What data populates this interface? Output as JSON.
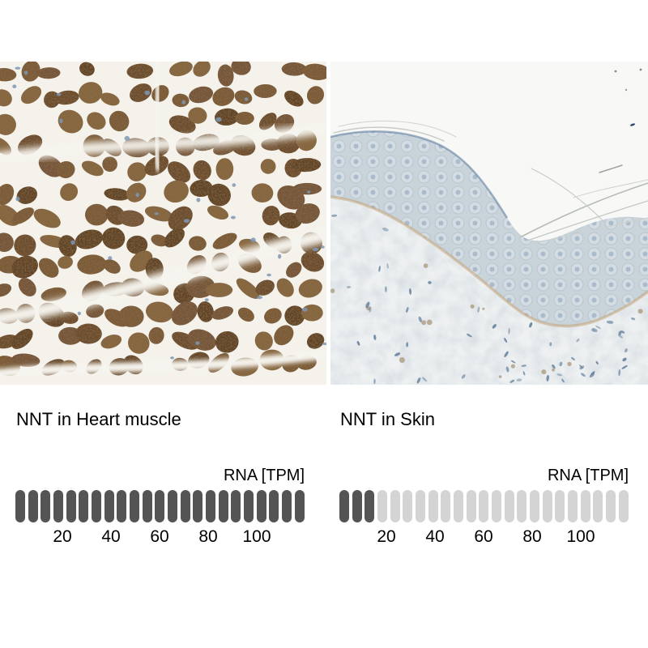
{
  "page": {
    "background": "#ffffff"
  },
  "panels": [
    {
      "title": "NNT in Heart muscle",
      "axis_label": "RNA [TPM]",
      "ticks": [
        "20",
        "40",
        "60",
        "80",
        "100"
      ],
      "bar": {
        "segments_total": 23,
        "segments_filled": 23,
        "filled_color": "#545454",
        "empty_color": "#d4d4d4"
      },
      "micrograph": {
        "description": "IHC micrograph of heart muscle with strong brown cytoplasmic staining of myocyte bundles separated by white clefts",
        "background_color": "#f5f2ec",
        "stain_colors": [
          "#6b4c2e",
          "#7a5a38",
          "#5f4226",
          "#866640",
          "#74553a"
        ],
        "nucleus_color": "#7d98b4",
        "cleft_color": "#f6f4ee"
      }
    },
    {
      "title": "NNT in Skin",
      "axis_label": "RNA [TPM]",
      "ticks": [
        "20",
        "40",
        "60",
        "80",
        "100"
      ],
      "bar": {
        "segments_total": 23,
        "segments_filled": 3,
        "filled_color": "#545454",
        "empty_color": "#d4d4d4"
      },
      "micrograph": {
        "description": "IHC micrograph of skin: white background above a wavy bluish epidermis band over pale blue-grey dermis, mostly negative staining",
        "background_color": "#f8f8f6",
        "epidermis_color": "#c9d3da",
        "cell_body_color": "#d6dee4",
        "dermis_color": "#eef1f2",
        "nucleus_color": "#5d7b97",
        "basal_stain_color": "#c29e6e",
        "fleck_color": "#8d6b42"
      }
    }
  ],
  "chart_data": [
    {
      "type": "bar",
      "title": "NNT in Heart muscle",
      "unit": "RNA [TPM]",
      "x_ticks": [
        20,
        40,
        60,
        80,
        100
      ],
      "x_range": [
        0,
        119
      ],
      "segments_total": 23,
      "segments_filled": 23,
      "approx_value_tpm": 119
    },
    {
      "type": "bar",
      "title": "NNT in Skin",
      "unit": "RNA [TPM]",
      "x_ticks": [
        20,
        40,
        60,
        80,
        100
      ],
      "x_range": [
        0,
        119
      ],
      "segments_total": 23,
      "segments_filled": 3,
      "approx_value_tpm": 15
    }
  ]
}
